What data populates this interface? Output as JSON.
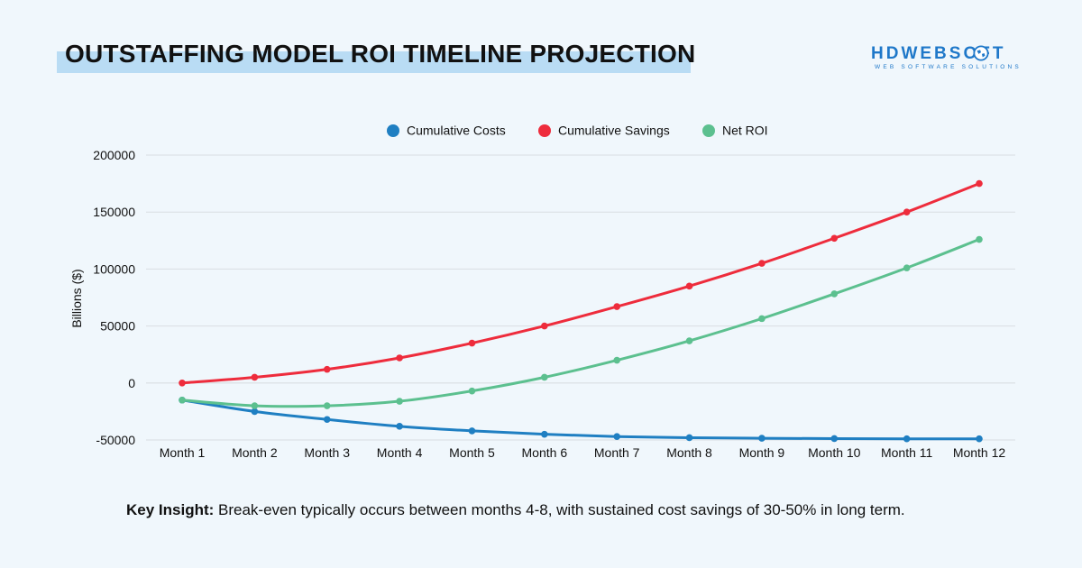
{
  "header": {
    "title": "OUTSTAFFING MODEL ROI TIMELINE PROJECTION",
    "logo_text": "HDWEBSOFT",
    "logo_tagline": "WEB SOFTWARE SOLUTIONS"
  },
  "insight": {
    "label": "Key Insight:",
    "text": " Break-even typically occurs between months 4-8, with sustained cost savings of 30-50% in long term."
  },
  "colors": {
    "costs": "#1f7fc2",
    "savings": "#ee2c3c",
    "net_roi": "#5cc08f",
    "grid": "#d9dde2",
    "accent": "#b9dcf4"
  },
  "chart_data": {
    "type": "line",
    "title": "",
    "xlabel": "",
    "ylabel": "Billions ($)",
    "ylim": [
      -50000,
      200000
    ],
    "yticks": [
      200000,
      150000,
      100000,
      50000,
      0,
      -50000
    ],
    "grid": true,
    "legend_position": "top-center",
    "categories": [
      "Month 1",
      "Month 2",
      "Month 3",
      "Month 4",
      "Month 5",
      "Month 6",
      "Month 7",
      "Month 8",
      "Month 9",
      "Month 10",
      "Month 11",
      "Month 12"
    ],
    "series": [
      {
        "name": "Cumulative Costs",
        "key": "costs",
        "values": [
          -15000,
          -25000,
          -32000,
          -38000,
          -42000,
          -45000,
          -47000,
          -48000,
          -48500,
          -48800,
          -49000,
          -49000
        ]
      },
      {
        "name": "Cumulative Savings",
        "key": "savings",
        "values": [
          0,
          5000,
          12000,
          22000,
          35000,
          50000,
          67000,
          85000,
          105000,
          127000,
          150000,
          175000
        ]
      },
      {
        "name": "Net ROI",
        "key": "net_roi",
        "values": [
          -15000,
          -20000,
          -20000,
          -16000,
          -7000,
          5000,
          20000,
          37000,
          56500,
          78200,
          101000,
          126000
        ]
      }
    ]
  }
}
